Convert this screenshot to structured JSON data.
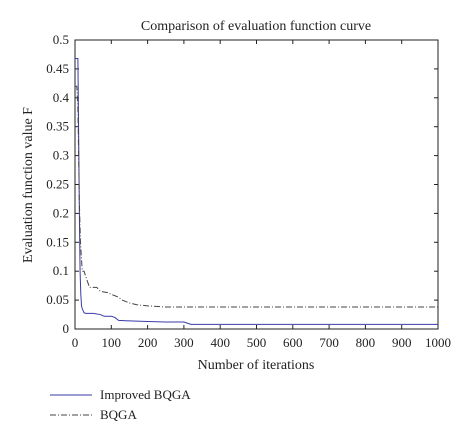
{
  "chart_data": {
    "type": "line",
    "title": "Comparison of evaluation function curve",
    "xlabel": "Number of iterations",
    "ylabel": "Evaluation function value F",
    "xlim": [
      0,
      1000
    ],
    "ylim": [
      0,
      0.5
    ],
    "xticks": [
      "0",
      "100",
      "200",
      "300",
      "400",
      "500",
      "600",
      "700",
      "800",
      "900",
      "1000"
    ],
    "yticks": [
      "0",
      "0.05",
      "0.1",
      "0.15",
      "0.2",
      "0.25",
      "0.3",
      "0.35",
      "0.4",
      "0.45",
      "0.5"
    ],
    "grid": false,
    "legend_position": "bottom-left, below axes",
    "series": [
      {
        "name": "Improved BQGA",
        "color": "#3a3aa8",
        "style": "solid",
        "x": [
          0,
          8,
          10,
          12,
          14,
          16,
          18,
          20,
          25,
          30,
          50,
          70,
          80,
          100,
          110,
          120,
          150,
          200,
          250,
          300,
          310,
          320,
          400,
          500,
          600,
          700,
          800,
          900,
          1000
        ],
        "y": [
          0.468,
          0.468,
          0.34,
          0.2,
          0.1,
          0.06,
          0.04,
          0.035,
          0.028,
          0.027,
          0.027,
          0.025,
          0.022,
          0.022,
          0.02,
          0.015,
          0.014,
          0.013,
          0.012,
          0.012,
          0.01,
          0.008,
          0.008,
          0.008,
          0.008,
          0.008,
          0.008,
          0.008,
          0.008
        ]
      },
      {
        "name": "BQGA",
        "color": "#444444",
        "style": "dashdot",
        "x": [
          0,
          5,
          8,
          10,
          12,
          15,
          18,
          20,
          25,
          30,
          40,
          50,
          60,
          70,
          90,
          100,
          120,
          130,
          150,
          170,
          200,
          250,
          300,
          400,
          500,
          600,
          700,
          800,
          900,
          1000
        ],
        "y": [
          0.42,
          0.42,
          0.38,
          0.3,
          0.22,
          0.15,
          0.12,
          0.1,
          0.1,
          0.09,
          0.072,
          0.072,
          0.072,
          0.065,
          0.063,
          0.06,
          0.055,
          0.05,
          0.045,
          0.042,
          0.04,
          0.038,
          0.038,
          0.038,
          0.038,
          0.038,
          0.038,
          0.038,
          0.038,
          0.038
        ]
      }
    ]
  }
}
